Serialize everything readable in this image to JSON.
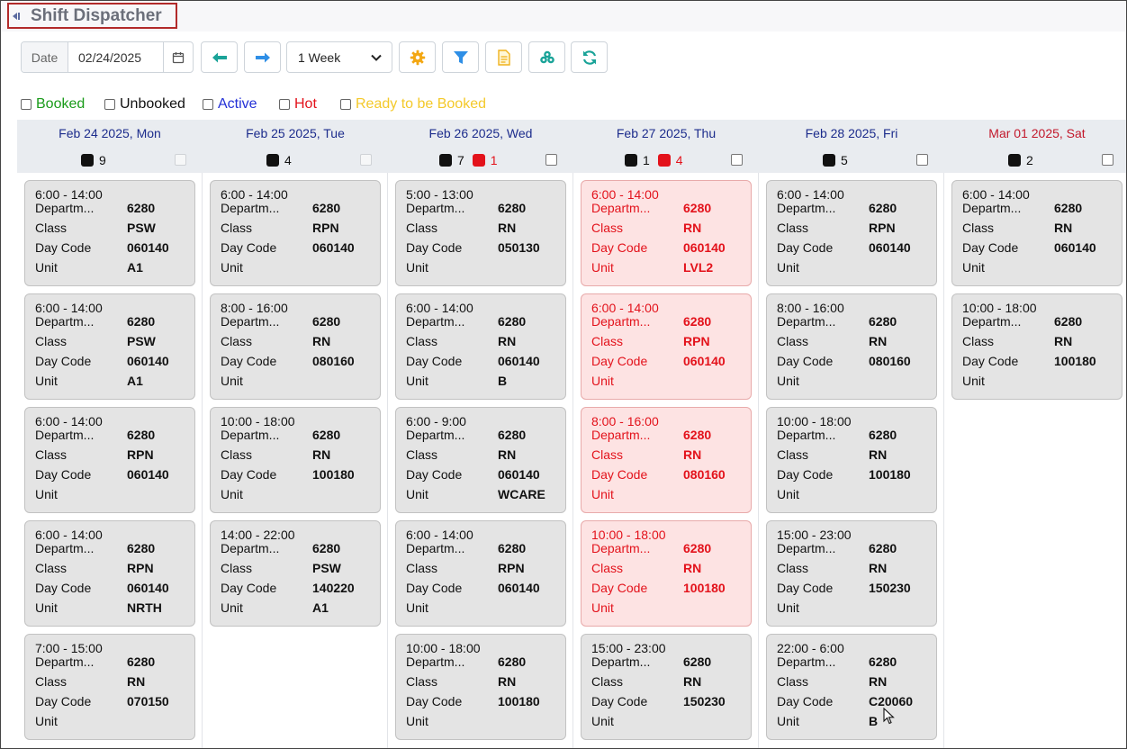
{
  "app": {
    "title": "Shift Dispatcher"
  },
  "toolbar": {
    "date_label": "Date",
    "date_value": "02/24/2025",
    "week_option": "1 Week",
    "icons": [
      "calendar-icon",
      "arrow-left-icon",
      "arrow-right-icon",
      "chevron-down-icon",
      "gear-icon",
      "filter-icon",
      "document-icon",
      "clover-icon",
      "refresh-icon"
    ]
  },
  "legend": [
    {
      "label": "Booked",
      "color": "#1a9b1a"
    },
    {
      "label": "Unbooked",
      "color": "#111111"
    },
    {
      "label": "Active",
      "color": "#2330d6"
    },
    {
      "label": "Hot",
      "color": "#e3121b"
    },
    {
      "label": "Ready to be Booked",
      "color": "#f4c92a"
    }
  ],
  "field_labels": {
    "dept": "Departm...",
    "class": "Class",
    "daycode": "Day Code",
    "unit": "Unit"
  },
  "days": [
    {
      "date": "Feb 24 2025, Mon",
      "black": "9",
      "red": null,
      "shifts": [
        {
          "time": "6:00 - 14:00",
          "dept": "6280",
          "class": "PSW",
          "daycode": "060140",
          "unit": "A1",
          "hot": false
        },
        {
          "time": "6:00 - 14:00",
          "dept": "6280",
          "class": "PSW",
          "daycode": "060140",
          "unit": "A1",
          "hot": false
        },
        {
          "time": "6:00 - 14:00",
          "dept": "6280",
          "class": "RPN",
          "daycode": "060140",
          "unit": "",
          "hot": false
        },
        {
          "time": "6:00 - 14:00",
          "dept": "6280",
          "class": "RPN",
          "daycode": "060140",
          "unit": "NRTH",
          "hot": false
        },
        {
          "time": "7:00 - 15:00",
          "dept": "6280",
          "class": "RN",
          "daycode": "070150",
          "unit": "",
          "hot": false
        }
      ]
    },
    {
      "date": "Feb 25 2025, Tue",
      "black": "4",
      "red": null,
      "shifts": [
        {
          "time": "6:00 - 14:00",
          "dept": "6280",
          "class": "RPN",
          "daycode": "060140",
          "unit": "",
          "hot": false
        },
        {
          "time": "8:00 - 16:00",
          "dept": "6280",
          "class": "RN",
          "daycode": "080160",
          "unit": "",
          "hot": false
        },
        {
          "time": "10:00 - 18:00",
          "dept": "6280",
          "class": "RN",
          "daycode": "100180",
          "unit": "",
          "hot": false
        },
        {
          "time": "14:00 - 22:00",
          "dept": "6280",
          "class": "PSW",
          "daycode": "140220",
          "unit": "A1",
          "hot": false
        }
      ]
    },
    {
      "date": "Feb 26 2025, Wed",
      "black": "7",
      "red": "1",
      "shifts": [
        {
          "time": "5:00 - 13:00",
          "dept": "6280",
          "class": "RN",
          "daycode": "050130",
          "unit": "",
          "hot": false
        },
        {
          "time": "6:00 - 14:00",
          "dept": "6280",
          "class": "RN",
          "daycode": "060140",
          "unit": "B",
          "hot": false
        },
        {
          "time": "6:00 - 9:00",
          "dept": "6280",
          "class": "RN",
          "daycode": "060140",
          "unit": "WCARE",
          "hot": false
        },
        {
          "time": "6:00 - 14:00",
          "dept": "6280",
          "class": "RPN",
          "daycode": "060140",
          "unit": "",
          "hot": false
        },
        {
          "time": "10:00 - 18:00",
          "dept": "6280",
          "class": "RN",
          "daycode": "100180",
          "unit": "",
          "hot": false
        }
      ]
    },
    {
      "date": "Feb 27 2025, Thu",
      "black": "1",
      "red": "4",
      "shifts": [
        {
          "time": "6:00 - 14:00",
          "dept": "6280",
          "class": "RN",
          "daycode": "060140",
          "unit": "LVL2",
          "hot": true
        },
        {
          "time": "6:00 - 14:00",
          "dept": "6280",
          "class": "RPN",
          "daycode": "060140",
          "unit": "",
          "hot": true
        },
        {
          "time": "8:00 - 16:00",
          "dept": "6280",
          "class": "RN",
          "daycode": "080160",
          "unit": "",
          "hot": true
        },
        {
          "time": "10:00 - 18:00",
          "dept": "6280",
          "class": "RN",
          "daycode": "100180",
          "unit": "",
          "hot": true
        },
        {
          "time": "15:00 - 23:00",
          "dept": "6280",
          "class": "RN",
          "daycode": "150230",
          "unit": "",
          "hot": false
        }
      ]
    },
    {
      "date": "Feb 28 2025, Fri",
      "black": "5",
      "red": null,
      "shifts": [
        {
          "time": "6:00 - 14:00",
          "dept": "6280",
          "class": "RPN",
          "daycode": "060140",
          "unit": "",
          "hot": false
        },
        {
          "time": "8:00 - 16:00",
          "dept": "6280",
          "class": "RN",
          "daycode": "080160",
          "unit": "",
          "hot": false
        },
        {
          "time": "10:00 - 18:00",
          "dept": "6280",
          "class": "RN",
          "daycode": "100180",
          "unit": "",
          "hot": false
        },
        {
          "time": "15:00 - 23:00",
          "dept": "6280",
          "class": "RN",
          "daycode": "150230",
          "unit": "",
          "hot": false
        },
        {
          "time": "22:00 - 6:00",
          "dept": "6280",
          "class": "RN",
          "daycode": "C20060",
          "unit": "B",
          "hot": false
        }
      ]
    },
    {
      "date": "Mar 01 2025, Sat",
      "black": "2",
      "red": null,
      "shifts": [
        {
          "time": "6:00 - 14:00",
          "dept": "6280",
          "class": "RN",
          "daycode": "060140",
          "unit": "",
          "hot": false
        },
        {
          "time": "10:00 - 18:00",
          "dept": "6280",
          "class": "RN",
          "daycode": "100180",
          "unit": "",
          "hot": false
        }
      ]
    }
  ]
}
